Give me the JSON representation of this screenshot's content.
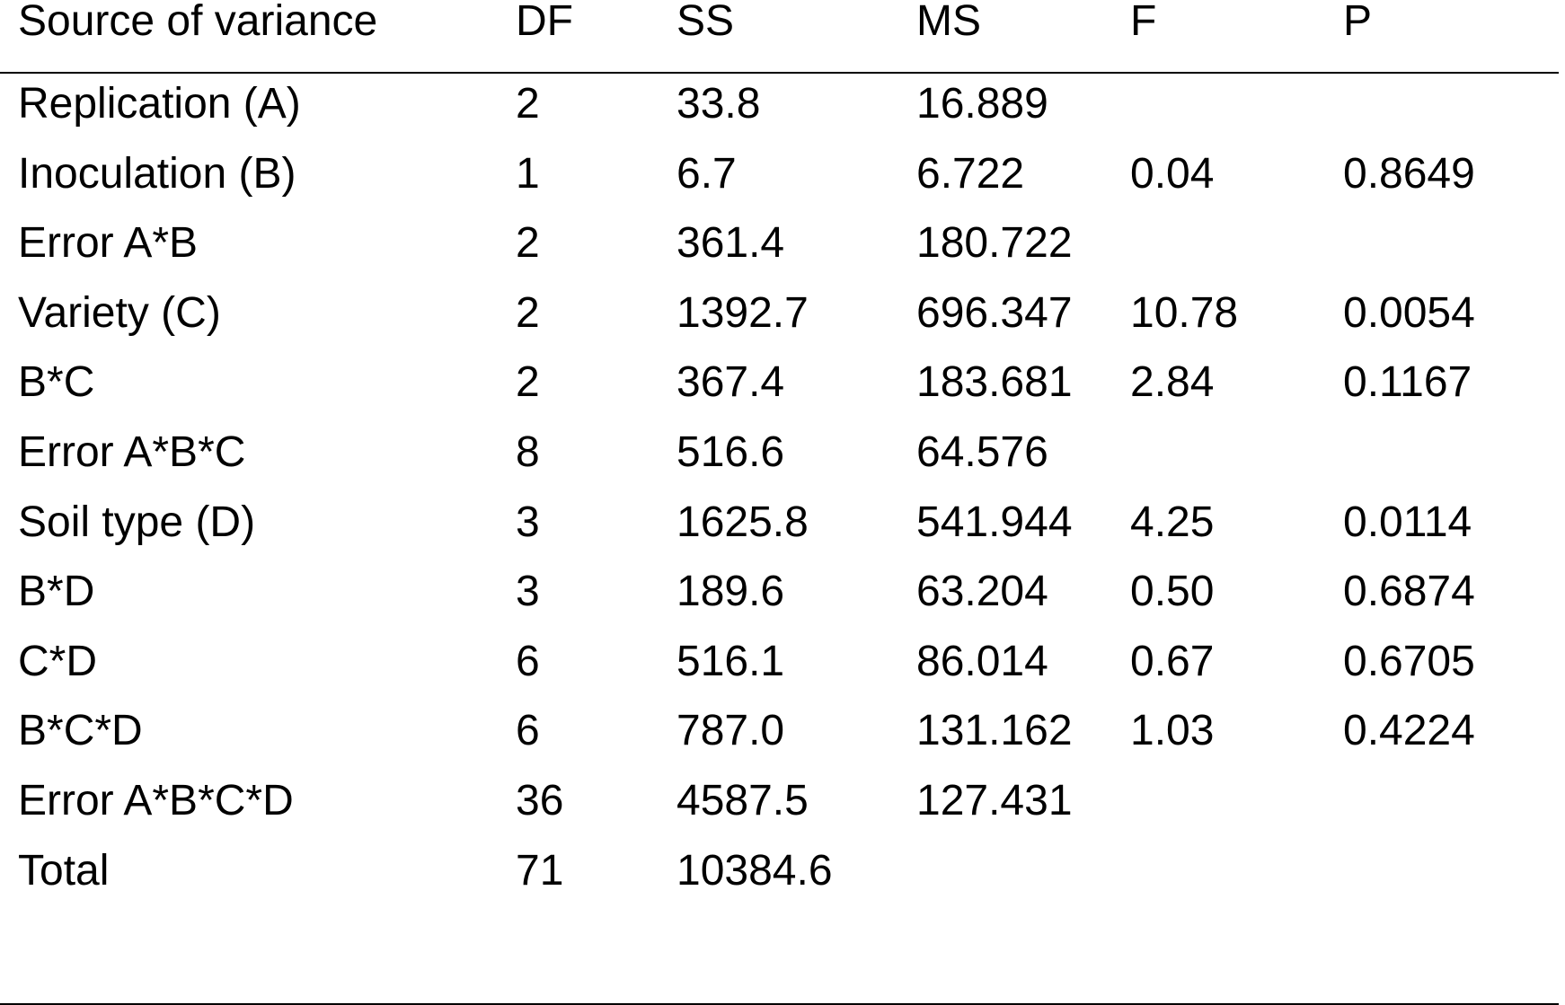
{
  "table": {
    "headers": {
      "source": "Source of variance",
      "df": "DF",
      "ss": "SS",
      "ms": "MS",
      "f": "F",
      "p": "P"
    },
    "rows": [
      {
        "source": "Replication (A)",
        "df": "2",
        "ss": "33.8",
        "ms": "16.889",
        "f": "",
        "p": ""
      },
      {
        "source": "Inoculation (B)",
        "df": "1",
        "ss": "6.7",
        "ms": "6.722",
        "f": "0.04",
        "p": "0.8649"
      },
      {
        "source": "Error A*B",
        "df": "2",
        "ss": "361.4",
        "ms": "180.722",
        "f": "",
        "p": ""
      },
      {
        "source": "Variety (C)",
        "df": "2",
        "ss": "1392.7",
        "ms": "696.347",
        "f": "10.78",
        "p": "0.0054"
      },
      {
        "source": "B*C",
        "df": "2",
        "ss": "367.4",
        "ms": "183.681",
        "f": "2.84",
        "p": "0.1167"
      },
      {
        "source": "Error A*B*C",
        "df": "8",
        "ss": "516.6",
        "ms": "64.576",
        "f": "",
        "p": ""
      },
      {
        "source": "Soil type (D)",
        "df": "3",
        "ss": "1625.8",
        "ms": "541.944",
        "f": "4.25",
        "p": "0.0114"
      },
      {
        "source": "B*D",
        "df": "3",
        "ss": "189.6",
        "ms": "63.204",
        "f": "0.50",
        "p": "0.6874"
      },
      {
        "source": "C*D",
        "df": "6",
        "ss": "516.1",
        "ms": "86.014",
        "f": "0.67",
        "p": "0.6705"
      },
      {
        "source": "B*C*D",
        "df": "6",
        "ss": "787.0",
        "ms": "131.162",
        "f": "1.03",
        "p": "0.4224"
      },
      {
        "source": "Error A*B*C*D",
        "df": "36",
        "ss": "4587.5",
        "ms": "127.431",
        "f": "",
        "p": ""
      },
      {
        "source": "Total",
        "df": "71",
        "ss": "10384.6",
        "ms": "",
        "f": "",
        "p": ""
      }
    ]
  }
}
